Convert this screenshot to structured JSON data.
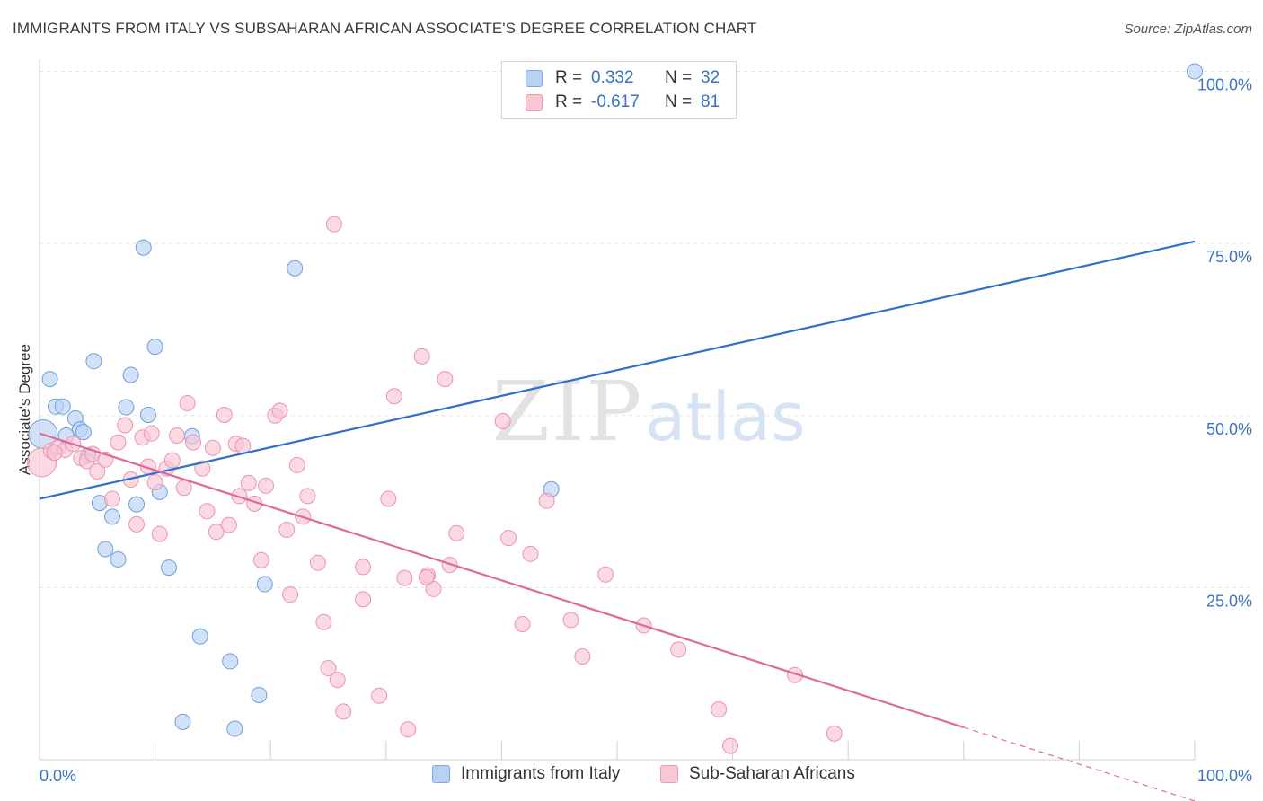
{
  "title": "IMMIGRANTS FROM ITALY VS SUBSAHARAN AFRICAN ASSOCIATE'S DEGREE CORRELATION CHART",
  "source": "Source: ZipAtlas.com",
  "watermark": {
    "zip": "ZIP",
    "atlas": "atlas"
  },
  "legend": {
    "r_label": "R =",
    "n_label": "N =",
    "rows": [
      {
        "r": "0.332",
        "n": "32",
        "fill": "#b8d2f4",
        "stroke": "#7fa8e0"
      },
      {
        "r": "-0.617",
        "n": "81",
        "fill": "#f9c6d3",
        "stroke": "#ef9bb3"
      }
    ]
  },
  "colors": {
    "italy_fill": "#b8d2f4",
    "italy_stroke": "#6f9fdc",
    "italy_line": "#2f6fcf",
    "ssa_fill": "#f8c4d3",
    "ssa_stroke": "#ec93ae",
    "ssa_line": "#e0689a",
    "tick_label": "#3d74c6",
    "grid": "#e3e3e3"
  },
  "chart_data": {
    "type": "scatter",
    "title": "IMMIGRANTS FROM ITALY VS SUBSAHARAN AFRICAN ASSOCIATE'S DEGREE CORRELATION CHART",
    "xlabel": "",
    "ylabel": "Associate's Degree",
    "xlim": [
      0,
      100
    ],
    "ylim": [
      0,
      100
    ],
    "x_tick_labels": [
      "0.0%",
      "100.0%"
    ],
    "y_ticks": [
      25,
      50,
      75,
      100
    ],
    "y_tick_labels": [
      "25.0%",
      "50.0%",
      "75.0%",
      "100.0%"
    ],
    "grid": true,
    "legend_position": "top-center",
    "series": [
      {
        "name": "Immigrants from Italy",
        "trend": {
          "x": [
            0,
            100
          ],
          "y": [
            37.9,
            75.3
          ]
        },
        "points": [
          {
            "x": 0.3,
            "y": 47.3,
            "big": true
          },
          {
            "x": 0.9,
            "y": 55.3
          },
          {
            "x": 1.4,
            "y": 51.3
          },
          {
            "x": 2.0,
            "y": 51.3
          },
          {
            "x": 2.3,
            "y": 47.1
          },
          {
            "x": 3.1,
            "y": 49.6
          },
          {
            "x": 3.5,
            "y": 48.0
          },
          {
            "x": 3.8,
            "y": 47.6
          },
          {
            "x": 4.2,
            "y": 44.2
          },
          {
            "x": 4.7,
            "y": 57.9
          },
          {
            "x": 5.2,
            "y": 37.3
          },
          {
            "x": 5.7,
            "y": 30.6
          },
          {
            "x": 6.3,
            "y": 35.3
          },
          {
            "x": 6.8,
            "y": 29.1
          },
          {
            "x": 7.5,
            "y": 51.2
          },
          {
            "x": 7.9,
            "y": 55.9
          },
          {
            "x": 8.4,
            "y": 37.1
          },
          {
            "x": 9.0,
            "y": 74.4
          },
          {
            "x": 9.4,
            "y": 50.1
          },
          {
            "x": 10.0,
            "y": 60.0
          },
          {
            "x": 10.4,
            "y": 38.9
          },
          {
            "x": 11.2,
            "y": 27.9
          },
          {
            "x": 12.4,
            "y": 5.5
          },
          {
            "x": 13.2,
            "y": 47.0
          },
          {
            "x": 13.9,
            "y": 17.9
          },
          {
            "x": 16.5,
            "y": 14.3
          },
          {
            "x": 16.9,
            "y": 4.5
          },
          {
            "x": 19.0,
            "y": 9.4
          },
          {
            "x": 19.5,
            "y": 25.5
          },
          {
            "x": 22.1,
            "y": 71.4
          },
          {
            "x": 44.3,
            "y": 39.3
          },
          {
            "x": 100.0,
            "y": 100.0
          }
        ]
      },
      {
        "name": "Sub-Saharan Africans",
        "trend": {
          "x": [
            0,
            80
          ],
          "y": [
            47.4,
            4.7
          ]
        },
        "trend_dashed": {
          "x": [
            80,
            100
          ],
          "y": [
            4.7,
            -6.0
          ]
        },
        "points": [
          {
            "x": 0.2,
            "y": 43.2,
            "big": true
          },
          {
            "x": 1.0,
            "y": 44.9
          },
          {
            "x": 1.6,
            "y": 45.4
          },
          {
            "x": 2.2,
            "y": 45.0
          },
          {
            "x": 2.9,
            "y": 45.9
          },
          {
            "x": 3.6,
            "y": 43.8
          },
          {
            "x": 4.1,
            "y": 43.4
          },
          {
            "x": 4.6,
            "y": 44.4
          },
          {
            "x": 5.0,
            "y": 41.9
          },
          {
            "x": 5.7,
            "y": 43.6
          },
          {
            "x": 6.3,
            "y": 37.9
          },
          {
            "x": 6.8,
            "y": 46.1
          },
          {
            "x": 7.4,
            "y": 48.6
          },
          {
            "x": 7.9,
            "y": 40.7
          },
          {
            "x": 8.4,
            "y": 34.2
          },
          {
            "x": 8.9,
            "y": 46.8
          },
          {
            "x": 9.4,
            "y": 42.6
          },
          {
            "x": 10.0,
            "y": 40.3
          },
          {
            "x": 10.4,
            "y": 32.8
          },
          {
            "x": 11.0,
            "y": 42.3
          },
          {
            "x": 11.5,
            "y": 43.5
          },
          {
            "x": 11.9,
            "y": 47.1
          },
          {
            "x": 12.5,
            "y": 39.5
          },
          {
            "x": 12.8,
            "y": 51.8
          },
          {
            "x": 13.3,
            "y": 46.1
          },
          {
            "x": 14.1,
            "y": 42.3
          },
          {
            "x": 14.5,
            "y": 36.1
          },
          {
            "x": 15.0,
            "y": 45.3
          },
          {
            "x": 15.3,
            "y": 33.1
          },
          {
            "x": 16.0,
            "y": 50.1
          },
          {
            "x": 16.4,
            "y": 34.1
          },
          {
            "x": 17.0,
            "y": 45.9
          },
          {
            "x": 17.3,
            "y": 38.3
          },
          {
            "x": 17.6,
            "y": 45.6
          },
          {
            "x": 18.1,
            "y": 40.2
          },
          {
            "x": 18.6,
            "y": 37.2
          },
          {
            "x": 19.2,
            "y": 29.0
          },
          {
            "x": 19.6,
            "y": 39.8
          },
          {
            "x": 20.4,
            "y": 50.0
          },
          {
            "x": 20.8,
            "y": 50.7
          },
          {
            "x": 21.4,
            "y": 33.4
          },
          {
            "x": 21.7,
            "y": 24.0
          },
          {
            "x": 22.3,
            "y": 42.8
          },
          {
            "x": 22.8,
            "y": 35.3
          },
          {
            "x": 23.2,
            "y": 38.3
          },
          {
            "x": 24.1,
            "y": 28.6
          },
          {
            "x": 24.6,
            "y": 20.0
          },
          {
            "x": 25.0,
            "y": 13.3
          },
          {
            "x": 25.5,
            "y": 77.8
          },
          {
            "x": 25.8,
            "y": 11.6
          },
          {
            "x": 26.3,
            "y": 7.0
          },
          {
            "x": 28.0,
            "y": 28.0
          },
          {
            "x": 28.0,
            "y": 23.3
          },
          {
            "x": 29.4,
            "y": 9.3
          },
          {
            "x": 30.2,
            "y": 37.9
          },
          {
            "x": 30.7,
            "y": 52.8
          },
          {
            "x": 31.6,
            "y": 26.4
          },
          {
            "x": 31.9,
            "y": 4.4
          },
          {
            "x": 33.1,
            "y": 58.6
          },
          {
            "x": 33.6,
            "y": 26.8
          },
          {
            "x": 34.1,
            "y": 24.8
          },
          {
            "x": 35.1,
            "y": 55.3
          },
          {
            "x": 35.5,
            "y": 28.3
          },
          {
            "x": 36.1,
            "y": 32.9
          },
          {
            "x": 40.1,
            "y": 49.2
          },
          {
            "x": 40.6,
            "y": 32.2
          },
          {
            "x": 41.8,
            "y": 19.7
          },
          {
            "x": 42.5,
            "y": 29.9
          },
          {
            "x": 43.9,
            "y": 37.6
          },
          {
            "x": 46.0,
            "y": 20.3
          },
          {
            "x": 47.0,
            "y": 15.0
          },
          {
            "x": 49.0,
            "y": 26.9
          },
          {
            "x": 52.3,
            "y": 19.5
          },
          {
            "x": 55.3,
            "y": 16.0
          },
          {
            "x": 58.8,
            "y": 7.3
          },
          {
            "x": 59.8,
            "y": 2.0
          },
          {
            "x": 65.4,
            "y": 12.3
          },
          {
            "x": 68.8,
            "y": 3.8
          },
          {
            "x": 33.5,
            "y": 26.5
          },
          {
            "x": 1.3,
            "y": 44.6
          },
          {
            "x": 9.7,
            "y": 47.4
          }
        ]
      }
    ]
  },
  "bottom_legend": {
    "items": [
      {
        "label": "Immigrants from Italy"
      },
      {
        "label": "Sub-Saharan Africans"
      }
    ]
  }
}
